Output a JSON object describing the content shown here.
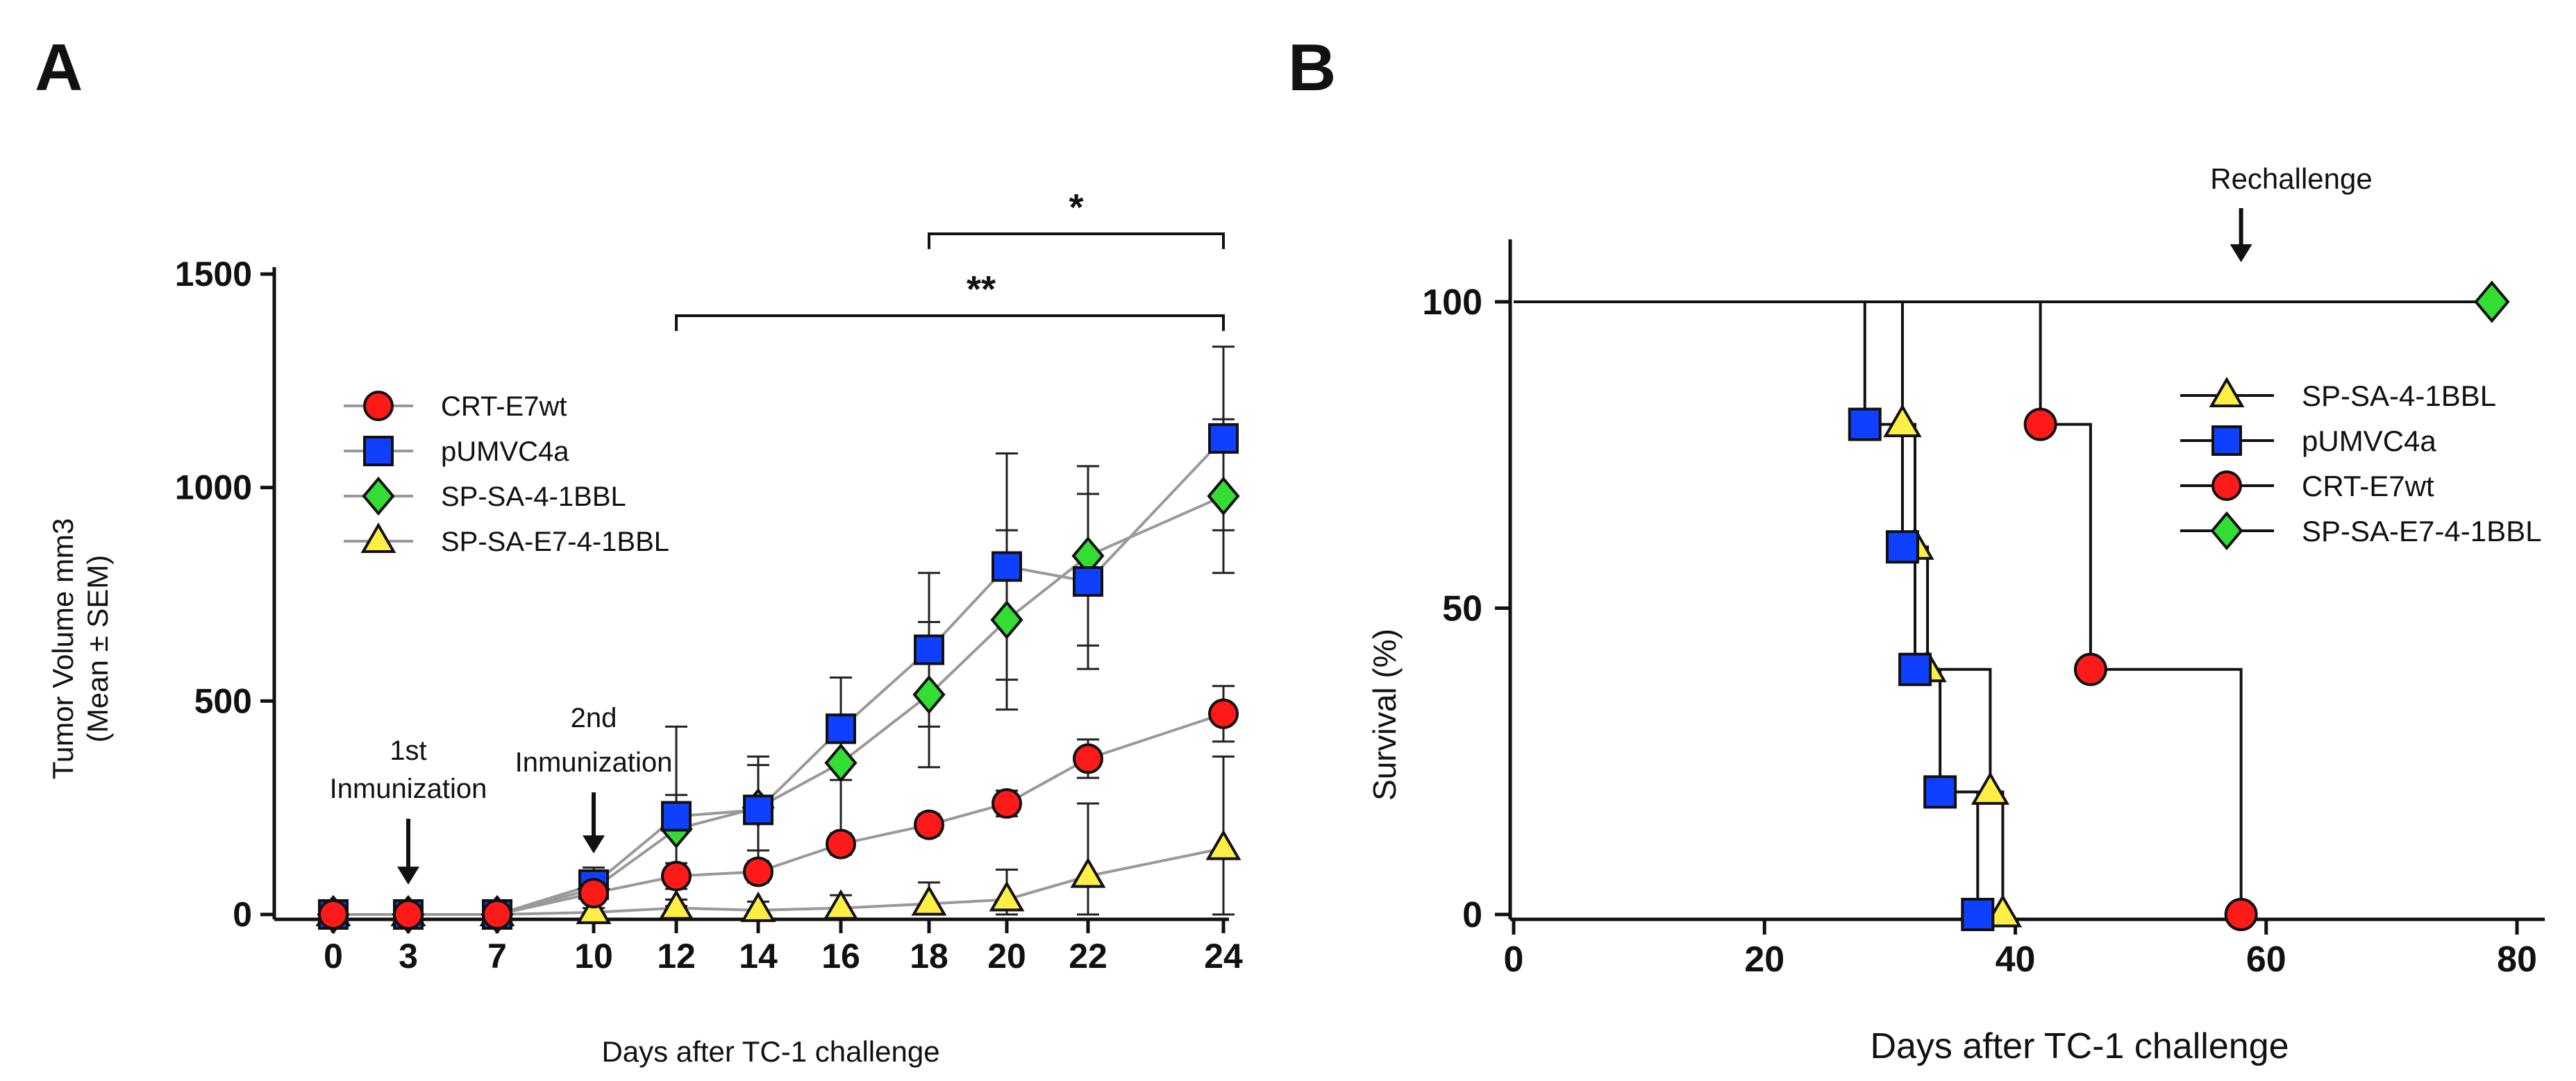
{
  "colors": {
    "red": "#ff1a1a",
    "blue": "#1040ff",
    "green": "#33dd33",
    "yellow": "#ffee44",
    "gray": "#999999",
    "black": "#111111"
  },
  "chart_data": [
    {
      "type": "line",
      "panel_label": "A",
      "xlabel": "Days after TC-1 challenge",
      "ylabel_line1": "Tumor Volume mm3",
      "ylabel_line2": "(Mean ± SEM)",
      "x": [
        "0",
        "3",
        "7",
        "10",
        "12",
        "14",
        "16",
        "18",
        "20",
        "22",
        "24"
      ],
      "yticks": [
        "0",
        "500",
        "1000",
        "1500"
      ],
      "ylim": [
        0,
        1500
      ],
      "series": [
        {
          "name": "CRT-E7wt",
          "marker": "circle",
          "color": "red",
          "values": [
            0,
            0,
            0,
            50,
            90,
            100,
            165,
            210,
            260,
            365,
            470
          ],
          "err": [
            0,
            0,
            0,
            20,
            30,
            25,
            25,
            25,
            30,
            45,
            65
          ]
        },
        {
          "name": "pUMVC4a",
          "marker": "square",
          "color": "blue",
          "values": [
            0,
            0,
            0,
            70,
            230,
            245,
            435,
            620,
            815,
            780,
            1115
          ],
          "err": [
            0,
            0,
            0,
            40,
            210,
            125,
            120,
            180,
            265,
            205,
            215
          ]
        },
        {
          "name": "SP-SA-4-1BBL",
          "marker": "diamond",
          "color": "green",
          "values": [
            0,
            0,
            0,
            60,
            200,
            250,
            355,
            515,
            690,
            840,
            980
          ],
          "err": [
            0,
            0,
            0,
            20,
            80,
            100,
            200,
            170,
            210,
            210,
            180
          ]
        },
        {
          "name": "SP-SA-E7-4-1BBL",
          "marker": "triangle",
          "color": "yellow",
          "values": [
            0,
            0,
            0,
            5,
            15,
            10,
            15,
            25,
            35,
            90,
            155
          ],
          "err": [
            0,
            0,
            0,
            10,
            20,
            20,
            30,
            50,
            70,
            170,
            215
          ]
        }
      ],
      "annotations": [
        {
          "text_lines": [
            "1st",
            "Inmunization"
          ],
          "x_index": 1
        },
        {
          "text_lines": [
            "2nd",
            "Inmunization"
          ],
          "x_index": 3
        }
      ],
      "significance": [
        {
          "label": "**",
          "from_index": 4,
          "to_index": 10
        },
        {
          "label": "*",
          "from_index": 7,
          "to_index": 10
        }
      ]
    },
    {
      "type": "line",
      "subtype": "kaplan-meier",
      "panel_label": "B",
      "xlabel": "Days after TC-1 challenge",
      "ylabel": "Survival (%)",
      "xticks": [
        "0",
        "20",
        "40",
        "60",
        "80"
      ],
      "yticks": [
        "0",
        "50",
        "100"
      ],
      "xlim": [
        0,
        80
      ],
      "ylim": [
        0,
        100
      ],
      "annotation": "Rechallenge",
      "annotation_x": 58,
      "series": [
        {
          "name": "SP-SA-4-1BBL",
          "marker": "triangle",
          "color": "yellow",
          "steps": [
            [
              0,
              100
            ],
            [
              31,
              80
            ],
            [
              32,
              60
            ],
            [
              33,
              40
            ],
            [
              38,
              20
            ],
            [
              39,
              0
            ]
          ],
          "points": [
            [
              31,
              80
            ],
            [
              32,
              60
            ],
            [
              33,
              40
            ],
            [
              38,
              20
            ],
            [
              39,
              0
            ]
          ]
        },
        {
          "name": "pUMVC4a",
          "marker": "square",
          "color": "blue",
          "steps": [
            [
              0,
              100
            ],
            [
              28,
              80
            ],
            [
              31,
              60
            ],
            [
              32,
              40
            ],
            [
              34,
              20
            ],
            [
              37,
              0
            ]
          ],
          "points": [
            [
              28,
              80
            ],
            [
              31,
              60
            ],
            [
              32,
              40
            ],
            [
              34,
              20
            ],
            [
              37,
              0
            ]
          ]
        },
        {
          "name": "CRT-E7wt",
          "marker": "circle",
          "color": "red",
          "steps": [
            [
              0,
              100
            ],
            [
              42,
              80
            ],
            [
              46,
              40
            ],
            [
              58,
              0
            ]
          ],
          "points": [
            [
              42,
              80
            ],
            [
              46,
              40
            ],
            [
              58,
              0
            ]
          ]
        },
        {
          "name": "SP-SA-E7-4-1BBL",
          "marker": "diamond",
          "color": "green",
          "steps": [
            [
              0,
              100
            ],
            [
              78,
              100
            ]
          ],
          "points": [
            [
              78,
              100
            ]
          ]
        }
      ]
    }
  ]
}
